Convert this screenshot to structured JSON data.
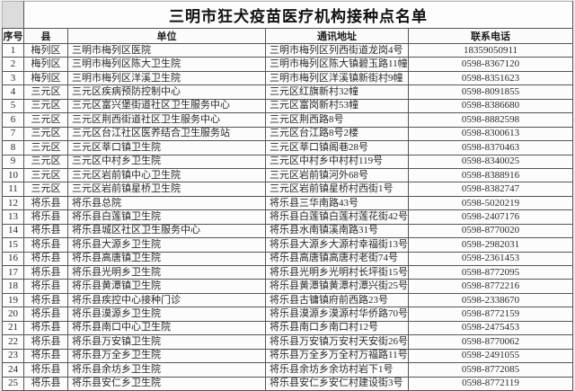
{
  "page": {
    "title": "三明市狂犬疫苗医疗机构接种点名单"
  },
  "colors": {
    "table_border": "#565656",
    "page_background": "#ececec",
    "table_background": "#fcfcfc",
    "text": "#2a2a2a"
  },
  "table": {
    "columns": [
      "序号",
      "县",
      "单位",
      "通讯地址",
      "联系电话"
    ],
    "rows": [
      {
        "no": "1",
        "county": "梅列区",
        "unit": "三明市梅列区医院",
        "address": "三明市梅列区列西街道龙岗4号",
        "phone": "18359050911"
      },
      {
        "no": "2",
        "county": "梅列区",
        "unit": "三明市梅列区陈大卫生院",
        "address": "三明市梅列区陈大镇碧玉路11幢",
        "phone": "0598-8367120"
      },
      {
        "no": "3",
        "county": "梅列区",
        "unit": "三明市梅列区洋溪卫生院",
        "address": "三明市梅列区洋溪镇新街村9幢",
        "phone": "0598-8351623"
      },
      {
        "no": "4",
        "county": "三元区",
        "unit": "三元区疾病预防控制中心",
        "address": "三元区红旗新村32幢",
        "phone": "0598-8091855"
      },
      {
        "no": "5",
        "county": "三元区",
        "unit": "三元区富兴堡街道社区卫生服务中心",
        "address": "三元区富岗新村53幢",
        "phone": "0598-8386680"
      },
      {
        "no": "6",
        "county": "三元区",
        "unit": "三元区荆西街道社区卫生服务中心",
        "address": "三元区荆西路8号",
        "phone": "0598-8882598"
      },
      {
        "no": "7",
        "county": "三元区",
        "unit": "三元区台江社区医养结合卫生服务站",
        "address": "三元区台江路8号2楼",
        "phone": "0598-8300613"
      },
      {
        "no": "8",
        "county": "三元区",
        "unit": "三元区莘口镇卫生院",
        "address": "三元区莘口镇阁巷28号",
        "phone": "0598-8370463"
      },
      {
        "no": "9",
        "county": "三元区",
        "unit": "三元区中村乡卫生院",
        "address": "三元区中村乡中村村119号",
        "phone": "0598-8340025"
      },
      {
        "no": "10",
        "county": "三元区",
        "unit": "三元区岩前镇中心卫生院",
        "address": "三元区岩前镇河外68号",
        "phone": "0598-8388916"
      },
      {
        "no": "11",
        "county": "三元区",
        "unit": "三元区岩前镇星桥卫生院",
        "address": "三元区岩前镇星桥村西街1号",
        "phone": "0598-8382747"
      },
      {
        "no": "12",
        "county": "将乐县",
        "unit": "将乐县总院",
        "address": "将乐县三华南路43号",
        "phone": "0598-5020219"
      },
      {
        "no": "13",
        "county": "将乐县",
        "unit": "将乐县白莲镇卫生院",
        "address": "将乐县白莲镇白莲村莲花街42号",
        "phone": "0598-2407176"
      },
      {
        "no": "14",
        "county": "将乐县",
        "unit": "将乐县城区社区卫生服务中心",
        "address": "将乐县水南镇溪南路31号",
        "phone": "0598-8770020"
      },
      {
        "no": "15",
        "county": "将乐县",
        "unit": "将乐县大源乡卫生院",
        "address": "将乐县大源乡大源村幸福街13号",
        "phone": "0598-2982031"
      },
      {
        "no": "16",
        "county": "将乐县",
        "unit": "将乐县高唐镇卫生院",
        "address": "将乐县高唐镇高唐村老街74号",
        "phone": "0598-2361453"
      },
      {
        "no": "17",
        "county": "将乐县",
        "unit": "将乐县光明乡卫生院",
        "address": "将乐县光明乡光明村长坪街15号",
        "phone": "0598-8772095"
      },
      {
        "no": "18",
        "county": "将乐县",
        "unit": "将乐县黄潭镇卫生院",
        "address": "将乐县黄潭镇黄潭村潭兴街25号",
        "phone": "0598-8772216"
      },
      {
        "no": "19",
        "county": "将乐县",
        "unit": "将乐县疾控中心接种门诊",
        "address": "将乐县古镛镇府前西路23号",
        "phone": "0598-2338670"
      },
      {
        "no": "20",
        "county": "将乐县",
        "unit": "将乐县漠源乡卫生院",
        "address": "将乐县漠源乡漠源村华侨路70号",
        "phone": "0598-8772159"
      },
      {
        "no": "21",
        "county": "将乐县",
        "unit": "将乐县南口中心卫生院",
        "address": "将乐县南口乡南口村12号",
        "phone": "0598-2475453"
      },
      {
        "no": "22",
        "county": "将乐县",
        "unit": "将乐县万安镇卫生院",
        "address": "将乐县万安镇万安村天安街26号",
        "phone": "0598-8770062"
      },
      {
        "no": "23",
        "county": "将乐县",
        "unit": "将乐县万全乡卫生院",
        "address": "将乐县万全乡万全村万福路11号",
        "phone": "0598-2491055"
      },
      {
        "no": "24",
        "county": "将乐县",
        "unit": "将乐县余坊乡卫生院",
        "address": "将乐县余坊乡余坊村岩下1号",
        "phone": "0598-8772085"
      },
      {
        "no": "25",
        "county": "将乐县",
        "unit": "将乐县安仁乡卫生院",
        "address": "将乐县安仁乡安仁村建设街3号",
        "phone": "0598-8772119"
      }
    ]
  }
}
